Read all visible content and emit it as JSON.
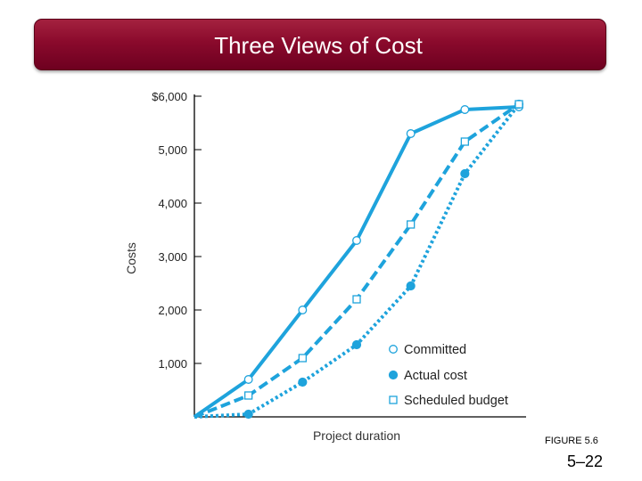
{
  "slide": {
    "title": "Three Views of Cost",
    "figure_label": "FIGURE 5.6",
    "page_number": "5–22"
  },
  "chart_data": {
    "type": "line",
    "title": "",
    "xlabel": "Project duration",
    "ylabel": "Costs",
    "ylim": [
      0,
      6000
    ],
    "xlim": [
      0,
      6
    ],
    "y_ticks": [
      1000,
      2000,
      3000,
      4000,
      5000,
      6000
    ],
    "y_tick_labels": [
      "1,000",
      "2,000",
      "3,000",
      "4,000",
      "5,000",
      "$6,000"
    ],
    "grid": false,
    "legend_position": "bottom-right",
    "color": "#1ea3dc",
    "series": [
      {
        "name": "Committed",
        "style": "solid",
        "marker": "open-circle",
        "x": [
          0,
          1,
          2,
          3,
          4,
          5,
          6
        ],
        "y": [
          0,
          700,
          2000,
          3300,
          5300,
          5750,
          5800
        ]
      },
      {
        "name": "Actual cost",
        "style": "dotted",
        "marker": "filled-circle",
        "x": [
          0,
          1,
          2,
          3,
          4,
          5,
          6
        ],
        "y": [
          0,
          50,
          650,
          1350,
          2450,
          4550,
          5850
        ]
      },
      {
        "name": "Scheduled budget",
        "style": "dashed",
        "marker": "open-square",
        "x": [
          0,
          1,
          2,
          3,
          4,
          5,
          6
        ],
        "y": [
          0,
          400,
          1100,
          2200,
          3600,
          5150,
          5850
        ]
      }
    ]
  }
}
